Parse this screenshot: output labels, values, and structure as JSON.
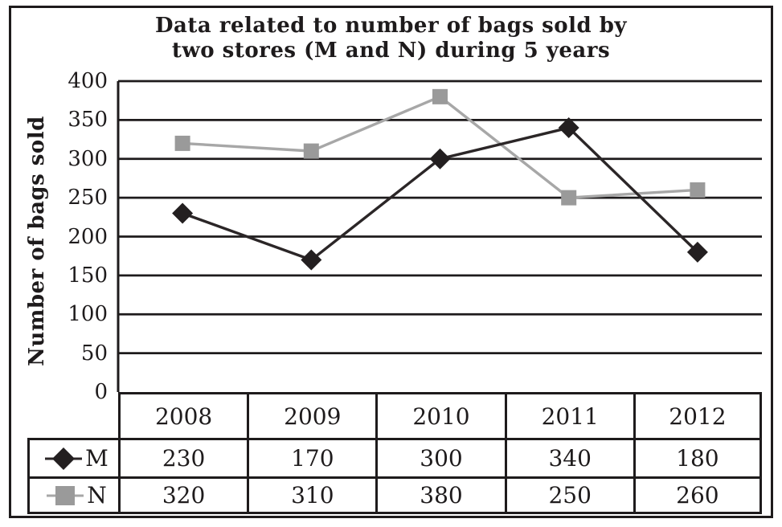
{
  "window": {
    "background": "#ffffff"
  },
  "colors": {
    "ink": "#1e1b1c",
    "grid": "#1e1b1c",
    "series_m": "#231f20",
    "series_m_line": "#2b2627",
    "series_n": "#9a9a9a",
    "series_n_line": "#a7a7a7"
  },
  "chart_data": {
    "type": "line",
    "title_lines": [
      "Data related to number of bags sold by",
      "two stores (M and N) during 5 years"
    ],
    "ylabel": "Number of bags sold",
    "xlabel": "",
    "ylim": [
      0,
      400
    ],
    "ytick_step": 50,
    "ytick_labels": [
      "400",
      "350",
      "300",
      "250",
      "200",
      "150",
      "100",
      "50",
      "0"
    ],
    "grid": "horizontal-lines",
    "legend_position": "table-left",
    "categories": [
      "2008",
      "2009",
      "2010",
      "2011",
      "2012"
    ],
    "series": [
      {
        "name": "M",
        "marker": "diamond",
        "color_key": "series_m",
        "line_color_key": "series_m_line",
        "values": [
          230,
          170,
          300,
          340,
          180
        ]
      },
      {
        "name": "N",
        "marker": "square",
        "color_key": "series_n",
        "line_color_key": "series_n_line",
        "values": [
          320,
          310,
          380,
          250,
          260
        ]
      }
    ]
  }
}
